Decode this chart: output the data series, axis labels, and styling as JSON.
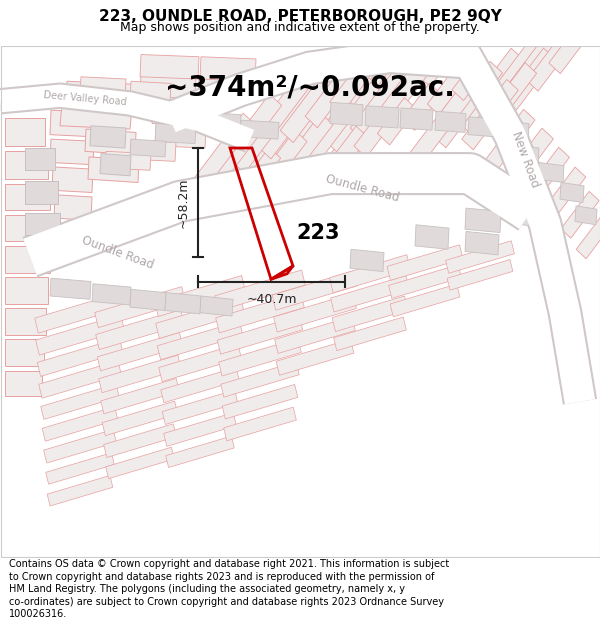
{
  "title": "223, OUNDLE ROAD, PETERBOROUGH, PE2 9QY",
  "subtitle": "Map shows position and indicative extent of the property.",
  "area_text": "~374m²/~0.092ac.",
  "label_223": "223",
  "dim_height": "~58.2m",
  "dim_width": "~40.7m",
  "footer": "Contains OS data © Crown copyright and database right 2021. This information is subject to Crown copyright and database rights 2023 and is reproduced with the permission of HM Land Registry. The polygons (including the associated geometry, namely x, y co-ordinates) are subject to Crown copyright and database rights 2023 Ordnance Survey 100026316.",
  "map_bg": "#f7f2f2",
  "parcel_fill": "#f0ecec",
  "parcel_stroke": "#e8a0a0",
  "building_fill": "#e0dada",
  "building_stroke": "#c8c0c0",
  "road_color": "#ffffff",
  "road_edge": "#d0c8c8",
  "property_stroke": "#cc0000",
  "road_label_color": "#b0a8a8",
  "dim_color": "#222222",
  "title_fontsize": 11,
  "subtitle_fontsize": 9,
  "area_fontsize": 20,
  "label_fontsize": 15,
  "footer_fontsize": 7.0
}
